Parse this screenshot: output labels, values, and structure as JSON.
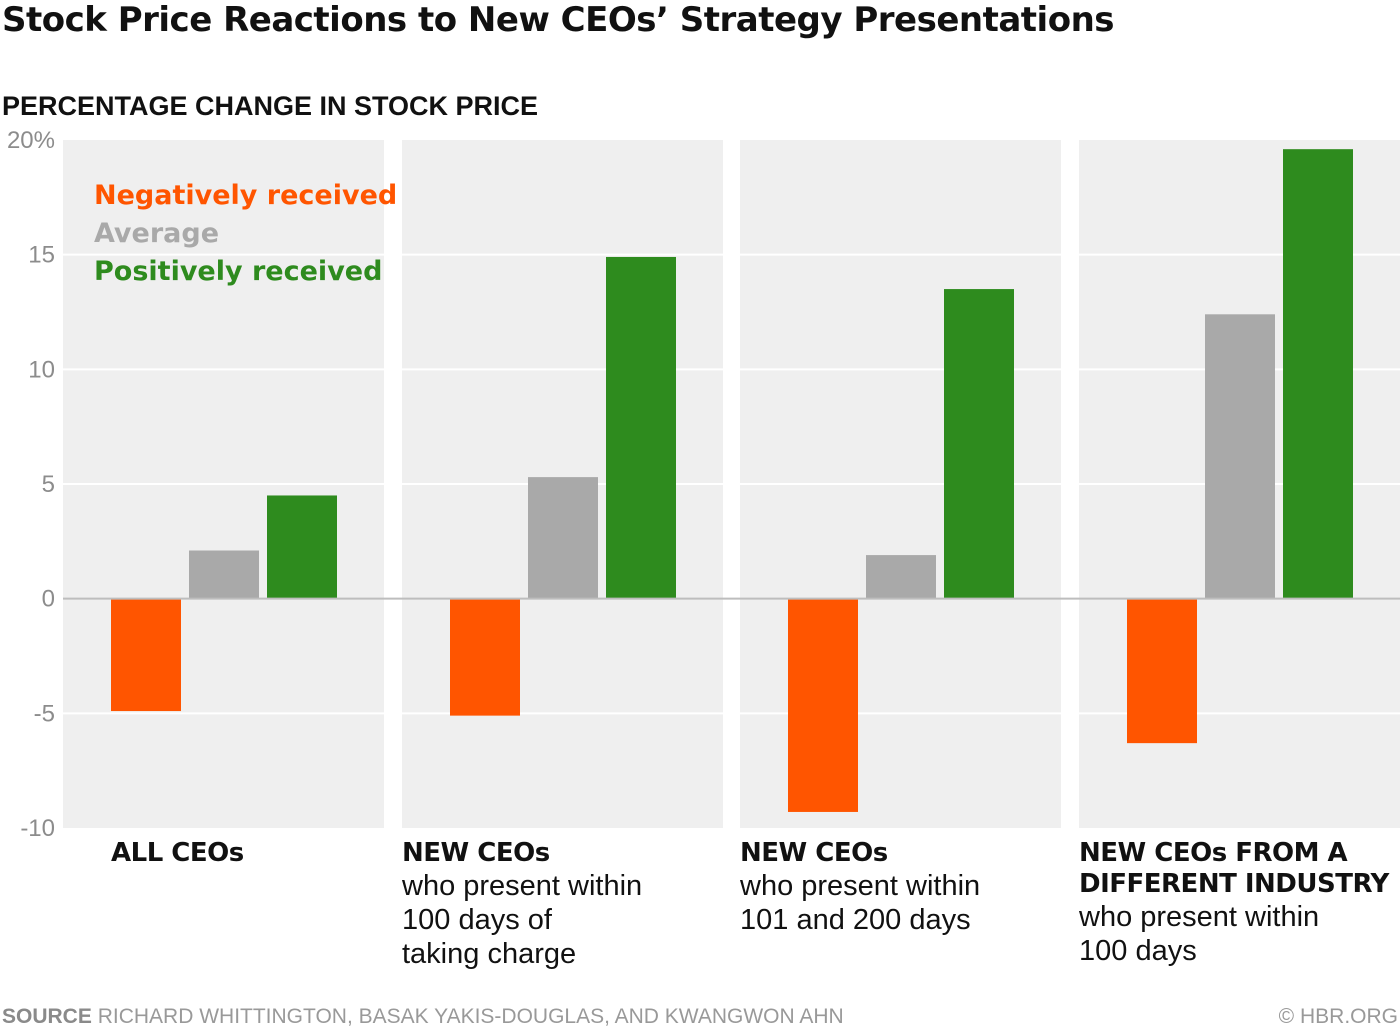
{
  "title": "Stock Price Reactions to New CEOs’ Strategy Presentations",
  "subtitle": "PERCENTAGE CHANGE IN STOCK PRICE",
  "source_label": "SOURCE",
  "source_text": "RICHARD WHITTINGTON, BASAK YAKIS-DOUGLAS, AND KWANGWON AHN",
  "credit": "© HBR.ORG",
  "colors": {
    "negative": "#ff5500",
    "average": "#a9a9a9",
    "positive": "#2e8b1e",
    "panel_bg": "#efefef",
    "grid": "#ffffff",
    "axis_text": "#8c8c8c"
  },
  "legend": {
    "negative": "Negatively received",
    "average": "Average",
    "positive": "Positively received"
  },
  "chart_data": {
    "type": "bar",
    "title": "Stock Price Reactions to New CEOs’ Strategy Presentations",
    "ylabel": "PERCENTAGE CHANGE IN STOCK PRICE",
    "ylim": [
      -10,
      20
    ],
    "yticks": [
      20,
      15,
      10,
      5,
      0,
      -5,
      -10
    ],
    "ytick_labels": [
      "20%",
      "15",
      "10",
      "5",
      "0",
      "-5",
      "-10"
    ],
    "legend_position": "top-left",
    "series": [
      {
        "name": "Negatively received",
        "color_key": "negative"
      },
      {
        "name": "Average",
        "color_key": "average"
      },
      {
        "name": "Positively received",
        "color_key": "positive"
      }
    ],
    "panels": [
      {
        "head": "ALL CEOs",
        "lines": [],
        "values": [
          -4.9,
          2.1,
          4.5
        ]
      },
      {
        "head": "NEW CEOs",
        "lines": [
          "who present within",
          "100 days of",
          "taking charge"
        ],
        "values": [
          -5.1,
          5.3,
          14.9
        ]
      },
      {
        "head": "NEW CEOs",
        "lines": [
          "who present within",
          "101 and 200 days"
        ],
        "values": [
          -9.3,
          1.9,
          13.5
        ]
      },
      {
        "head": "NEW CEOs FROM A DIFFERENT INDUSTRY",
        "lines": [
          "who present within",
          "100 days"
        ],
        "values": [
          -6.3,
          12.4,
          19.6
        ]
      }
    ]
  }
}
